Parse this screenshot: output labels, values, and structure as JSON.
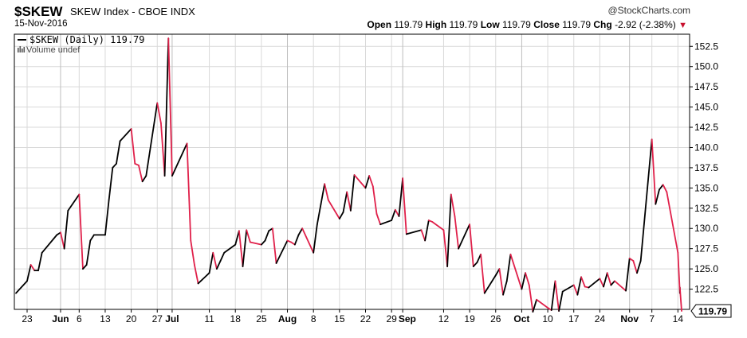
{
  "header": {
    "symbol": "$SKEW",
    "index_name": "SKEW Index - CBOE INDX",
    "logo": "@StockCharts.com",
    "date": "15-Nov-2016",
    "open_label": "Open",
    "open": "119.79",
    "high_label": "High",
    "high": "119.79",
    "low_label": "Low",
    "low": "119.79",
    "close_label": "Close",
    "close": "119.79",
    "chg_label": "Chg",
    "chg": "-2.92 (-2.38%)"
  },
  "legend": {
    "series": "$SKEW (Daily) 119.79",
    "volume": "Volume undef"
  },
  "last_value_label": "119.79",
  "colors": {
    "up": "#000000",
    "down": "#e0204a",
    "grid": "#d9d9d9",
    "axis": "#000000"
  },
  "chart_data": {
    "type": "line",
    "title": "$SKEW",
    "series_name": "$SKEW (Daily)",
    "ylim": [
      120.0,
      154.0
    ],
    "y_ticks": [
      "122.5",
      "125.0",
      "127.5",
      "130.0",
      "132.5",
      "135.0",
      "137.5",
      "140.0",
      "142.5",
      "145.0",
      "147.5",
      "150.0",
      "152.5"
    ],
    "grid": true,
    "x_start": "2016-05-20",
    "x_end": "2016-11-15",
    "x_ticks": [
      {
        "label": "23",
        "date": "2016-05-23",
        "month": false
      },
      {
        "label": "Jun",
        "date": "2016-06-01",
        "month": true
      },
      {
        "label": "6",
        "date": "2016-06-06",
        "month": false
      },
      {
        "label": "13",
        "date": "2016-06-13",
        "month": false
      },
      {
        "label": "20",
        "date": "2016-06-20",
        "month": false
      },
      {
        "label": "27",
        "date": "2016-06-27",
        "month": false
      },
      {
        "label": "Jul",
        "date": "2016-07-01",
        "month": true
      },
      {
        "label": "11",
        "date": "2016-07-11",
        "month": false
      },
      {
        "label": "18",
        "date": "2016-07-18",
        "month": false
      },
      {
        "label": "25",
        "date": "2016-07-25",
        "month": false
      },
      {
        "label": "Aug",
        "date": "2016-08-01",
        "month": true
      },
      {
        "label": "8",
        "date": "2016-08-08",
        "month": false
      },
      {
        "label": "15",
        "date": "2016-08-15",
        "month": false
      },
      {
        "label": "22",
        "date": "2016-08-22",
        "month": false
      },
      {
        "label": "29",
        "date": "2016-08-29",
        "month": false
      },
      {
        "label": "Sep",
        "date": "2016-09-01",
        "month": true
      },
      {
        "label": "12",
        "date": "2016-09-12",
        "month": false
      },
      {
        "label": "19",
        "date": "2016-09-19",
        "month": false
      },
      {
        "label": "26",
        "date": "2016-09-26",
        "month": false
      },
      {
        "label": "Oct",
        "date": "2016-10-03",
        "month": true
      },
      {
        "label": "10",
        "date": "2016-10-10",
        "month": false
      },
      {
        "label": "17",
        "date": "2016-10-17",
        "month": false
      },
      {
        "label": "24",
        "date": "2016-10-24",
        "month": false
      },
      {
        "label": "Nov",
        "date": "2016-11-01",
        "month": true
      },
      {
        "label": "7",
        "date": "2016-11-07",
        "month": false
      },
      {
        "label": "14",
        "date": "2016-11-14",
        "month": false
      }
    ],
    "points": [
      {
        "date": "2016-05-20",
        "v": 122.0
      },
      {
        "date": "2016-05-23",
        "v": 123.5
      },
      {
        "date": "2016-05-24",
        "v": 125.5
      },
      {
        "date": "2016-05-25",
        "v": 124.8
      },
      {
        "date": "2016-05-26",
        "v": 124.8
      },
      {
        "date": "2016-05-27",
        "v": 127.0
      },
      {
        "date": "2016-05-31",
        "v": 129.2
      },
      {
        "date": "2016-06-01",
        "v": 129.5
      },
      {
        "date": "2016-06-02",
        "v": 127.5
      },
      {
        "date": "2016-06-03",
        "v": 132.2
      },
      {
        "date": "2016-06-06",
        "v": 134.2
      },
      {
        "date": "2016-06-07",
        "v": 125.0
      },
      {
        "date": "2016-06-08",
        "v": 125.5
      },
      {
        "date": "2016-06-09",
        "v": 128.5
      },
      {
        "date": "2016-06-10",
        "v": 129.2
      },
      {
        "date": "2016-06-13",
        "v": 129.2
      },
      {
        "date": "2016-06-14",
        "v": 133.5
      },
      {
        "date": "2016-06-15",
        "v": 137.5
      },
      {
        "date": "2016-06-16",
        "v": 138.0
      },
      {
        "date": "2016-06-17",
        "v": 140.8
      },
      {
        "date": "2016-06-20",
        "v": 142.3
      },
      {
        "date": "2016-06-21",
        "v": 138.0
      },
      {
        "date": "2016-06-22",
        "v": 137.8
      },
      {
        "date": "2016-06-23",
        "v": 135.8
      },
      {
        "date": "2016-06-24",
        "v": 136.5
      },
      {
        "date": "2016-06-27",
        "v": 145.5
      },
      {
        "date": "2016-06-28",
        "v": 143.0
      },
      {
        "date": "2016-06-29",
        "v": 136.5
      },
      {
        "date": "2016-06-30",
        "v": 153.5
      },
      {
        "date": "2016-07-01",
        "v": 136.5
      },
      {
        "date": "2016-07-05",
        "v": 140.5
      },
      {
        "date": "2016-07-06",
        "v": 128.5
      },
      {
        "date": "2016-07-07",
        "v": 125.5
      },
      {
        "date": "2016-07-08",
        "v": 123.2
      },
      {
        "date": "2016-07-11",
        "v": 124.5
      },
      {
        "date": "2016-07-12",
        "v": 127.0
      },
      {
        "date": "2016-07-13",
        "v": 125.0
      },
      {
        "date": "2016-07-14",
        "v": 126.0
      },
      {
        "date": "2016-07-15",
        "v": 127.0
      },
      {
        "date": "2016-07-18",
        "v": 128.0
      },
      {
        "date": "2016-07-19",
        "v": 129.7
      },
      {
        "date": "2016-07-20",
        "v": 125.3
      },
      {
        "date": "2016-07-21",
        "v": 129.8
      },
      {
        "date": "2016-07-22",
        "v": 128.3
      },
      {
        "date": "2016-07-25",
        "v": 128.0
      },
      {
        "date": "2016-07-26",
        "v": 128.5
      },
      {
        "date": "2016-07-27",
        "v": 129.7
      },
      {
        "date": "2016-07-28",
        "v": 130.0
      },
      {
        "date": "2016-07-29",
        "v": 125.7
      },
      {
        "date": "2016-08-01",
        "v": 128.5
      },
      {
        "date": "2016-08-02",
        "v": 128.3
      },
      {
        "date": "2016-08-03",
        "v": 128.0
      },
      {
        "date": "2016-08-04",
        "v": 129.2
      },
      {
        "date": "2016-08-05",
        "v": 130.0
      },
      {
        "date": "2016-08-08",
        "v": 127.0
      },
      {
        "date": "2016-08-09",
        "v": 130.5
      },
      {
        "date": "2016-08-10",
        "v": 133.0
      },
      {
        "date": "2016-08-11",
        "v": 135.5
      },
      {
        "date": "2016-08-12",
        "v": 133.5
      },
      {
        "date": "2016-08-15",
        "v": 131.2
      },
      {
        "date": "2016-08-16",
        "v": 132.0
      },
      {
        "date": "2016-08-17",
        "v": 134.5
      },
      {
        "date": "2016-08-18",
        "v": 132.2
      },
      {
        "date": "2016-08-19",
        "v": 136.6
      },
      {
        "date": "2016-08-22",
        "v": 135.0
      },
      {
        "date": "2016-08-23",
        "v": 136.5
      },
      {
        "date": "2016-08-24",
        "v": 135.2
      },
      {
        "date": "2016-08-25",
        "v": 131.8
      },
      {
        "date": "2016-08-26",
        "v": 130.5
      },
      {
        "date": "2016-08-29",
        "v": 131.0
      },
      {
        "date": "2016-08-30",
        "v": 132.3
      },
      {
        "date": "2016-08-31",
        "v": 131.5
      },
      {
        "date": "2016-09-01",
        "v": 136.2
      },
      {
        "date": "2016-09-02",
        "v": 129.3
      },
      {
        "date": "2016-09-06",
        "v": 129.8
      },
      {
        "date": "2016-09-07",
        "v": 128.5
      },
      {
        "date": "2016-09-08",
        "v": 131.0
      },
      {
        "date": "2016-09-09",
        "v": 130.8
      },
      {
        "date": "2016-09-12",
        "v": 129.8
      },
      {
        "date": "2016-09-13",
        "v": 125.3
      },
      {
        "date": "2016-09-14",
        "v": 134.2
      },
      {
        "date": "2016-09-15",
        "v": 131.5
      },
      {
        "date": "2016-09-16",
        "v": 127.5
      },
      {
        "date": "2016-09-19",
        "v": 130.5
      },
      {
        "date": "2016-09-20",
        "v": 125.3
      },
      {
        "date": "2016-09-21",
        "v": 125.8
      },
      {
        "date": "2016-09-22",
        "v": 126.8
      },
      {
        "date": "2016-09-23",
        "v": 122.0
      },
      {
        "date": "2016-09-26",
        "v": 124.2
      },
      {
        "date": "2016-09-27",
        "v": 125.0
      },
      {
        "date": "2016-09-28",
        "v": 121.8
      },
      {
        "date": "2016-09-29",
        "v": 123.5
      },
      {
        "date": "2016-09-30",
        "v": 126.8
      },
      {
        "date": "2016-10-03",
        "v": 122.5
      },
      {
        "date": "2016-10-04",
        "v": 124.5
      },
      {
        "date": "2016-10-05",
        "v": 123.0
      },
      {
        "date": "2016-10-06",
        "v": 119.7
      },
      {
        "date": "2016-10-07",
        "v": 121.2
      },
      {
        "date": "2016-10-10",
        "v": 120.2
      },
      {
        "date": "2016-10-11",
        "v": 119.9
      },
      {
        "date": "2016-10-12",
        "v": 123.5
      },
      {
        "date": "2016-10-13",
        "v": 119.8
      },
      {
        "date": "2016-10-14",
        "v": 122.2
      },
      {
        "date": "2016-10-17",
        "v": 123.0
      },
      {
        "date": "2016-10-18",
        "v": 121.8
      },
      {
        "date": "2016-10-19",
        "v": 124.0
      },
      {
        "date": "2016-10-20",
        "v": 122.8
      },
      {
        "date": "2016-10-21",
        "v": 122.7
      },
      {
        "date": "2016-10-24",
        "v": 123.8
      },
      {
        "date": "2016-10-25",
        "v": 122.8
      },
      {
        "date": "2016-10-26",
        "v": 124.5
      },
      {
        "date": "2016-10-27",
        "v": 123.0
      },
      {
        "date": "2016-10-28",
        "v": 123.5
      },
      {
        "date": "2016-10-31",
        "v": 122.3
      },
      {
        "date": "2016-11-01",
        "v": 126.3
      },
      {
        "date": "2016-11-02",
        "v": 126.0
      },
      {
        "date": "2016-11-03",
        "v": 124.5
      },
      {
        "date": "2016-11-04",
        "v": 126.0
      },
      {
        "date": "2016-11-07",
        "v": 141.0
      },
      {
        "date": "2016-11-08",
        "v": 133.0
      },
      {
        "date": "2016-11-09",
        "v": 134.8
      },
      {
        "date": "2016-11-10",
        "v": 135.4
      },
      {
        "date": "2016-11-11",
        "v": 134.5
      },
      {
        "date": "2016-11-14",
        "v": 127.0
      },
      {
        "date": "2016-11-14",
        "v": 122.0
      },
      {
        "date": "2016-11-14",
        "v": 122.7
      },
      {
        "date": "2016-11-15",
        "v": 119.8
      }
    ]
  }
}
